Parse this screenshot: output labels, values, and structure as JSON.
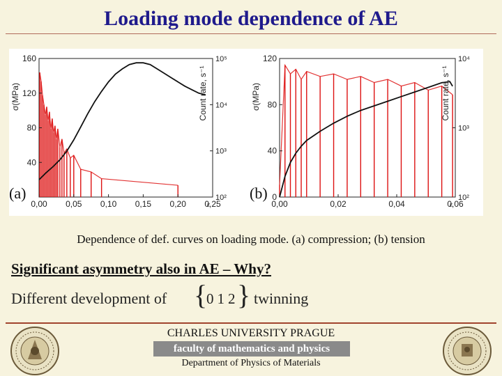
{
  "slide": {
    "title": "Loading mode dependence of AE",
    "caption": "Dependence of def. curves on loading mode. (a) compression; (b) tension",
    "heading": "Significant asymmetry also in AE – Why?",
    "line2_text": "Different development of",
    "brace_left": "{",
    "miller_indices": "012",
    "brace_right": "}",
    "line2_suffix": "twinning",
    "university": "CHARLES UNIVERSITY PRAGUE",
    "faculty": "faculty of mathematics and physics",
    "department": "Department of Physics of Materials"
  },
  "colors": {
    "title": "#1f1a8c",
    "stress_curve": "#111111",
    "count_rate": "#dd1111",
    "background": "#f7f3de"
  },
  "chart_data": [
    {
      "type": "line",
      "panel_label": "(a)",
      "xlabel": "ε",
      "ylabel": "σ(MPa)",
      "ylabel_right": "Count rate, s⁻¹",
      "xlim": [
        0,
        0.25
      ],
      "ylim": [
        0,
        160
      ],
      "x_ticks": [
        "0,00",
        "0,05",
        "0,10",
        "0,15",
        "0,20",
        "0,25"
      ],
      "y_ticks": [
        "40",
        "80",
        "120",
        "160"
      ],
      "y_right_ticks": [
        "10²",
        "10³",
        "10⁴",
        "10⁵"
      ],
      "y_right_scale": "log",
      "series": [
        {
          "name": "",
          "role": "stress",
          "x": [
            0.0,
            0.01,
            0.02,
            0.03,
            0.04,
            0.05,
            0.06,
            0.07,
            0.08,
            0.09,
            0.1,
            0.11,
            0.12,
            0.13,
            0.14,
            0.15,
            0.16,
            0.17,
            0.18,
            0.19,
            0.2,
            0.21,
            0.22,
            0.23,
            0.24
          ],
          "y": [
            20,
            28,
            35,
            43,
            53,
            66,
            81,
            96,
            110,
            122,
            133,
            142,
            148,
            153,
            155,
            155,
            153,
            148,
            143,
            138,
            133,
            128,
            124,
            120,
            118
          ]
        },
        {
          "name": "",
          "role": "count_rate",
          "x": [
            0.001,
            0.003,
            0.005,
            0.007,
            0.009,
            0.011,
            0.013,
            0.015,
            0.017,
            0.019,
            0.021,
            0.023,
            0.025,
            0.027,
            0.03,
            0.033,
            0.036,
            0.04,
            0.045,
            0.05,
            0.06,
            0.075,
            0.09,
            0.2
          ],
          "y": [
            50000,
            32000,
            16000,
            10000,
            6000,
            9000,
            4500,
            7000,
            3000,
            5000,
            2500,
            3500,
            1800,
            3000,
            1200,
            1800,
            900,
            1100,
            700,
            800,
            400,
            350,
            250,
            180
          ]
        }
      ]
    },
    {
      "type": "line",
      "panel_label": "(b)",
      "xlabel": "ε",
      "ylabel": "σ(MPa)",
      "ylabel_right": "Count rate, s⁻¹",
      "xlim": [
        0,
        0.065
      ],
      "ylim": [
        0,
        120
      ],
      "x_ticks": [
        "0,00",
        "0,02",
        "0,04",
        "0,06"
      ],
      "y_ticks": [
        "0",
        "40",
        "80",
        "120"
      ],
      "y_right_ticks": [
        "10²",
        "10³",
        "10⁴"
      ],
      "y_right_scale": "log",
      "series": [
        {
          "name": "",
          "role": "stress",
          "x": [
            0.0,
            0.002,
            0.004,
            0.006,
            0.008,
            0.01,
            0.015,
            0.02,
            0.025,
            0.03,
            0.035,
            0.04,
            0.045,
            0.05,
            0.055,
            0.06,
            0.063,
            0.064
          ],
          "y": [
            0,
            18,
            30,
            38,
            44,
            49,
            57,
            64,
            70,
            75,
            79,
            83,
            87,
            91,
            95,
            99,
            100,
            96
          ]
        },
        {
          "name": "",
          "role": "count_rate",
          "x": [
            0.0,
            0.002,
            0.004,
            0.006,
            0.008,
            0.01,
            0.015,
            0.02,
            0.025,
            0.03,
            0.035,
            0.04,
            0.045,
            0.05,
            0.055,
            0.06,
            0.064
          ],
          "y": [
            150,
            8000,
            6000,
            7000,
            5000,
            6500,
            5500,
            6000,
            5000,
            5500,
            4500,
            5000,
            4000,
            4500,
            3500,
            4000,
            3000
          ]
        }
      ]
    }
  ]
}
